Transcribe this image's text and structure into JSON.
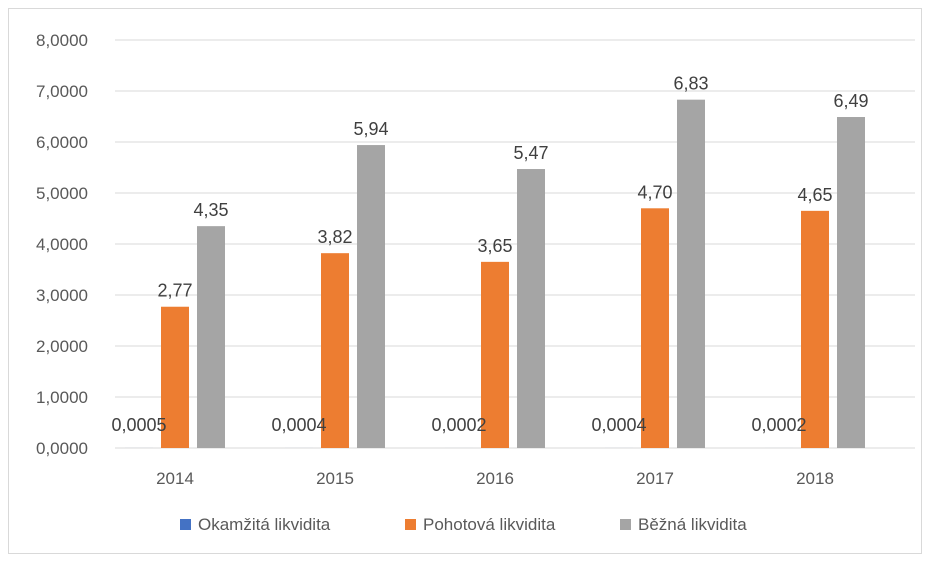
{
  "chart_data": {
    "type": "bar",
    "categories": [
      "2014",
      "2015",
      "2016",
      "2017",
      "2018"
    ],
    "series": [
      {
        "name": "Okamžitá likvidita",
        "color": "#4472c4",
        "values": [
          0.0005,
          0.0004,
          0.0002,
          0.0004,
          0.0002
        ],
        "labels": [
          "0,0005",
          "0,0004",
          "0,0002",
          "0,0004",
          "0,0002"
        ]
      },
      {
        "name": "Pohotová likvidita",
        "color": "#ed7d31",
        "values": [
          2.77,
          3.82,
          3.65,
          4.7,
          4.65
        ],
        "labels": [
          "2,77",
          "3,82",
          "3,65",
          "4,70",
          "4,65"
        ]
      },
      {
        "name": "Běžná likvidita",
        "color": "#a5a5a5",
        "values": [
          4.35,
          5.94,
          5.47,
          6.83,
          6.49
        ],
        "labels": [
          "4,35",
          "5,94",
          "5,47",
          "6,83",
          "6,49"
        ]
      }
    ],
    "ylim": [
      0,
      8
    ],
    "yticks": [
      0,
      1,
      2,
      3,
      4,
      5,
      6,
      7,
      8
    ],
    "ytick_labels": [
      "0,0000",
      "1,0000",
      "2,0000",
      "3,0000",
      "4,0000",
      "5,0000",
      "6,0000",
      "7,0000",
      "8,0000"
    ],
    "grid": true,
    "legend_position": "bottom",
    "title": "",
    "xlabel": "",
    "ylabel": ""
  }
}
